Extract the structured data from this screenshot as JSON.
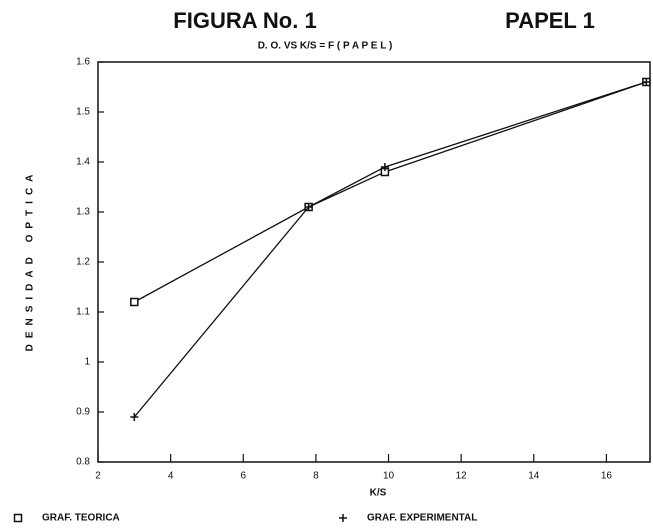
{
  "chart_data": {
    "type": "line",
    "title": "FIGURA No. 1",
    "title_right": "PAPEL 1",
    "subtitle": "D. O. VS K/S = F ( P A P E L )",
    "x_label": "K/S",
    "y_label": "DENSIDAD OPTICA",
    "series": [
      {
        "name": "GRAF. TEORICA",
        "color": "#111111",
        "marker": "square",
        "x": [
          3,
          7.8,
          9.9,
          17.1
        ],
        "values": [
          1.12,
          1.31,
          1.38,
          1.56
        ]
      },
      {
        "name": "GRAF. EXPERIMENTAL",
        "color": "#111111",
        "marker": "plus",
        "x": [
          3,
          7.8,
          9.9,
          17.1
        ],
        "values": [
          0.89,
          1.31,
          1.39,
          1.56
        ]
      }
    ],
    "xlim": [
      2,
      17.2
    ],
    "ylim": [
      0.8,
      1.6
    ],
    "xticks": [
      2,
      4,
      6,
      8,
      10,
      12,
      14,
      16
    ],
    "yticks": [
      0.8,
      0.9,
      1,
      1.1,
      1.2,
      1.3,
      1.4,
      1.5,
      1.6
    ]
  }
}
